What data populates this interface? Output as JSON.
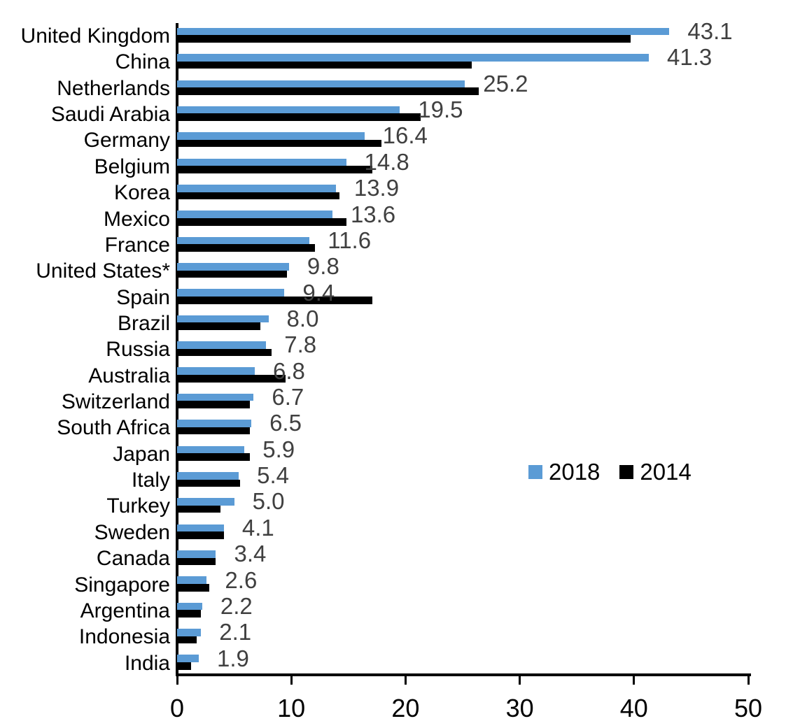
{
  "chart_data": {
    "type": "bar",
    "orientation": "horizontal",
    "title": "",
    "xlabel": "",
    "ylabel": "",
    "xlim": [
      0,
      50
    ],
    "x_ticks": [
      "0",
      "10",
      "20",
      "30",
      "40",
      "50"
    ],
    "grid": false,
    "legend_position": "middle-right",
    "categories": [
      "United Kingdom",
      "China",
      "Netherlands",
      "Saudi Arabia",
      "Germany",
      "Belgium",
      "Korea",
      "Mexico",
      "France",
      "United States*",
      "Spain",
      "Brazil",
      "Russia",
      "Australia",
      "Switzerland",
      "South Africa",
      "Japan",
      "Italy",
      "Turkey",
      "Sweden",
      "Canada",
      "Singapore",
      "Argentina",
      "Indonesia",
      "India"
    ],
    "series": [
      {
        "name": "2018",
        "color": "#5B9BD5",
        "values": [
          43.1,
          41.3,
          25.2,
          19.5,
          16.4,
          14.8,
          13.9,
          13.6,
          11.6,
          9.8,
          9.4,
          8.0,
          7.8,
          6.8,
          6.7,
          6.5,
          5.9,
          5.4,
          5.0,
          4.1,
          3.4,
          2.6,
          2.2,
          2.1,
          1.9
        ]
      },
      {
        "name": "2014",
        "color": "#000000",
        "values": [
          39.7,
          25.8,
          26.4,
          21.3,
          17.9,
          17.1,
          14.2,
          14.8,
          12.1,
          9.6,
          17.1,
          7.3,
          8.3,
          9.5,
          6.4,
          6.4,
          6.4,
          5.5,
          3.8,
          4.1,
          3.4,
          2.8,
          2.1,
          1.7,
          1.2
        ]
      }
    ],
    "data_labels": {
      "series": "2018",
      "color": "#404040",
      "values": [
        "43.1",
        "41.3",
        "25.2",
        "19.5",
        "16.4",
        "14.8",
        "13.9",
        "13.6",
        "11.6",
        "9.8",
        "9.4",
        "8.0",
        "7.8",
        "6.8",
        "6.7",
        "6.5",
        "5.9",
        "5.4",
        "5.0",
        "4.1",
        "3.4",
        "2.6",
        "2.2",
        "2.1",
        "1.9"
      ]
    }
  }
}
